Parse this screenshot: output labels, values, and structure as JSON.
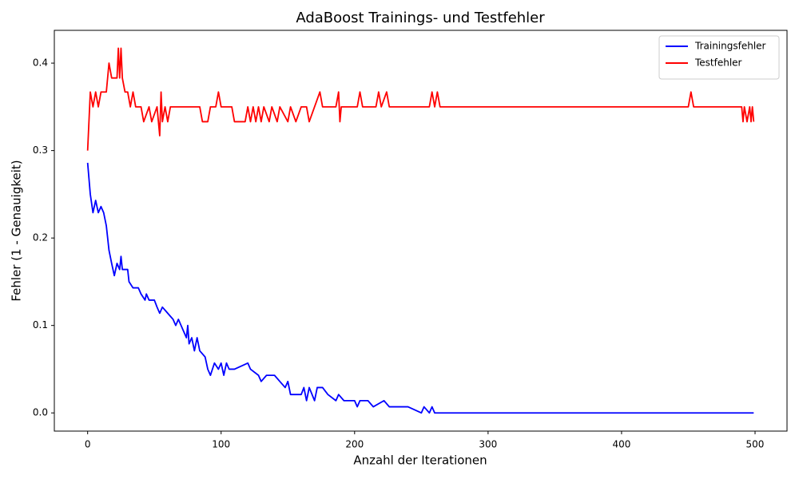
{
  "chart_data": {
    "type": "line",
    "title": "AdaBoost Trainings- und Testfehler",
    "x_label": "Anzahl der Iterationen",
    "y_label": "Fehler (1 - Genauigkeit)",
    "xlim": [
      -24.95,
      523.95
    ],
    "ylim": [
      -0.0208,
      0.4375
    ],
    "xticks": [
      0,
      100,
      200,
      300,
      400,
      500
    ],
    "yticks": [
      {
        "value": 0,
        "label": "0.0"
      },
      0.1,
      0.2,
      0.3,
      0.4
    ],
    "legend": "upper right",
    "series": [
      {
        "name": "Trainingsfehler",
        "color": "#0000ff",
        "x": [
          0,
          2,
          4,
          6,
          8,
          10,
          12,
          14,
          16,
          18,
          20,
          22,
          24,
          25,
          26,
          30,
          31,
          34,
          38,
          40,
          43,
          44,
          46,
          50,
          52,
          54,
          56,
          60,
          64,
          66,
          68,
          70,
          72,
          74,
          75,
          76,
          78,
          80,
          82,
          84,
          88,
          90,
          92,
          95,
          98,
          100,
          102,
          104,
          106,
          110,
          120,
          122,
          128,
          130,
          134,
          140,
          144,
          148,
          150,
          152,
          160,
          162,
          164,
          166,
          170,
          172,
          176,
          180,
          186,
          188,
          192,
          200,
          202,
          204,
          210,
          214,
          222,
          226,
          240,
          250,
          252,
          256,
          258,
          260,
          300,
          400,
          499
        ],
        "values": [
          0.286,
          0.25,
          0.229,
          0.243,
          0.229,
          0.236,
          0.229,
          0.214,
          0.186,
          0.171,
          0.157,
          0.171,
          0.164,
          0.179,
          0.164,
          0.164,
          0.15,
          0.143,
          0.143,
          0.136,
          0.129,
          0.136,
          0.129,
          0.129,
          0.121,
          0.114,
          0.121,
          0.114,
          0.107,
          0.1,
          0.107,
          0.1,
          0.093,
          0.086,
          0.1,
          0.079,
          0.086,
          0.071,
          0.086,
          0.071,
          0.064,
          0.05,
          0.043,
          0.057,
          0.05,
          0.057,
          0.043,
          0.057,
          0.05,
          0.05,
          0.057,
          0.05,
          0.043,
          0.036,
          0.043,
          0.043,
          0.036,
          0.029,
          0.036,
          0.021,
          0.021,
          0.029,
          0.014,
          0.029,
          0.014,
          0.029,
          0.029,
          0.021,
          0.014,
          0.021,
          0.014,
          0.014,
          0.007,
          0.014,
          0.014,
          0.007,
          0.014,
          0.007,
          0.007,
          0,
          0.007,
          0,
          0.007,
          0,
          0,
          0,
          0
        ]
      },
      {
        "name": "Testfehler",
        "color": "#ff0000",
        "x": [
          0,
          2,
          4,
          6,
          8,
          10,
          14,
          16,
          18,
          22,
          23,
          24,
          25,
          26,
          28,
          30,
          32,
          34,
          36,
          40,
          42,
          46,
          48,
          52,
          54,
          55,
          56,
          58,
          60,
          62,
          84,
          86,
          90,
          92,
          96,
          98,
          100,
          108,
          110,
          118,
          120,
          122,
          124,
          126,
          128,
          130,
          132,
          136,
          138,
          142,
          144,
          150,
          152,
          156,
          160,
          164,
          166,
          170,
          174,
          176,
          186,
          188,
          189,
          190,
          202,
          204,
          206,
          216,
          218,
          220,
          224,
          226,
          256,
          258,
          260,
          262,
          264,
          450,
          452,
          454,
          490,
          491,
          492,
          494,
          496,
          497,
          498,
          499
        ],
        "values": [
          0.3,
          0.367,
          0.35,
          0.367,
          0.35,
          0.367,
          0.367,
          0.4,
          0.383,
          0.383,
          0.417,
          0.383,
          0.417,
          0.383,
          0.367,
          0.367,
          0.35,
          0.367,
          0.35,
          0.35,
          0.333,
          0.35,
          0.333,
          0.35,
          0.317,
          0.367,
          0.333,
          0.35,
          0.333,
          0.35,
          0.35,
          0.333,
          0.333,
          0.35,
          0.35,
          0.367,
          0.35,
          0.35,
          0.333,
          0.333,
          0.35,
          0.333,
          0.35,
          0.333,
          0.35,
          0.333,
          0.35,
          0.333,
          0.35,
          0.333,
          0.35,
          0.333,
          0.35,
          0.333,
          0.35,
          0.35,
          0.333,
          0.35,
          0.367,
          0.35,
          0.35,
          0.367,
          0.333,
          0.35,
          0.35,
          0.367,
          0.35,
          0.35,
          0.367,
          0.35,
          0.367,
          0.35,
          0.35,
          0.367,
          0.35,
          0.367,
          0.35,
          0.35,
          0.367,
          0.35,
          0.35,
          0.333,
          0.35,
          0.333,
          0.35,
          0.333,
          0.35,
          0.333
        ]
      }
    ]
  }
}
